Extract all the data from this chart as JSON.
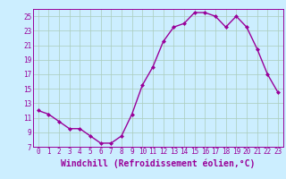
{
  "x": [
    0,
    1,
    2,
    3,
    4,
    5,
    6,
    7,
    8,
    9,
    10,
    11,
    12,
    13,
    14,
    15,
    16,
    17,
    18,
    19,
    20,
    21,
    22,
    23
  ],
  "y": [
    12,
    11.5,
    10.5,
    9.5,
    9.5,
    8.5,
    7.5,
    7.5,
    8.5,
    11.5,
    15.5,
    18.0,
    21.5,
    23.5,
    24.0,
    25.5,
    25.5,
    25.0,
    23.5,
    25.0,
    23.5,
    20.5,
    17.0,
    14.5
  ],
  "line_color": "#990099",
  "marker": "D",
  "marker_size": 2,
  "bg_color": "#cceeff",
  "grid_color": "#aaccbb",
  "xlabel": "Windchill (Refroidissement éolien,°C)",
  "xlim": [
    -0.5,
    23.5
  ],
  "ylim": [
    7,
    26
  ],
  "yticks": [
    7,
    9,
    11,
    13,
    15,
    17,
    19,
    21,
    23,
    25
  ],
  "xticks": [
    0,
    1,
    2,
    3,
    4,
    5,
    6,
    7,
    8,
    9,
    10,
    11,
    12,
    13,
    14,
    15,
    16,
    17,
    18,
    19,
    20,
    21,
    22,
    23
  ],
  "tick_label_fontsize": 5.5,
  "xlabel_fontsize": 7.0,
  "line_width": 1.0
}
